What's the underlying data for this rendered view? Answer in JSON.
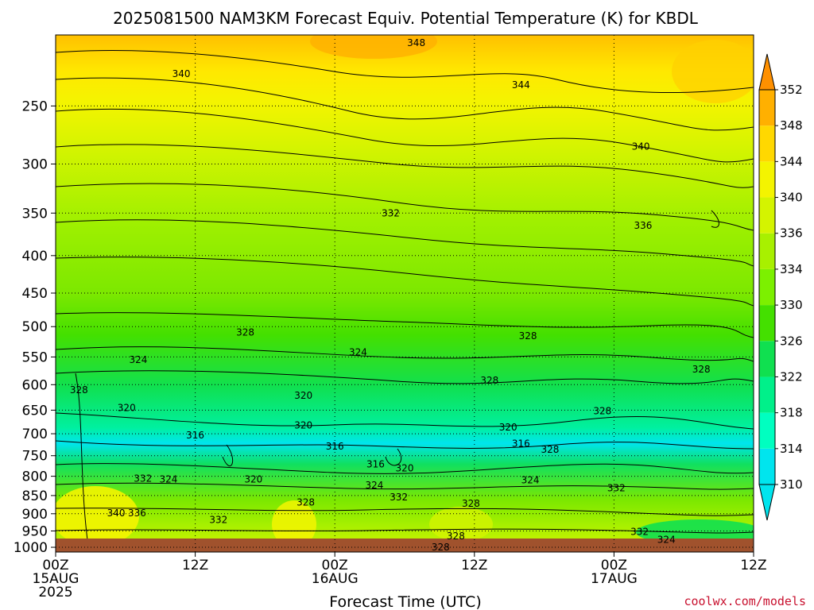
{
  "chart_data": {
    "type": "heatmap",
    "title": "2025081500 NAM3KM Forecast Equiv. Potential Temperature (K) for KBDL",
    "xlabel": "Forecast Time (UTC)",
    "ylabel": "",
    "credit": "coolwx.com/models",
    "x_ticks": [
      {
        "hour": 0,
        "lines": [
          "00Z",
          "15AUG",
          "2025"
        ]
      },
      {
        "hour": 12,
        "lines": [
          "12Z"
        ]
      },
      {
        "hour": 24,
        "lines": [
          "00Z",
          "16AUG"
        ]
      },
      {
        "hour": 36,
        "lines": [
          "12Z"
        ]
      },
      {
        "hour": 48,
        "lines": [
          "00Z",
          "17AUG"
        ]
      },
      {
        "hour": 60,
        "lines": [
          "12Z"
        ]
      }
    ],
    "xlim": [
      0,
      60
    ],
    "y_ticks": [
      250,
      300,
      350,
      400,
      450,
      500,
      550,
      600,
      650,
      700,
      750,
      800,
      850,
      900,
      950,
      1000
    ],
    "ylim": [
      1015,
      200
    ],
    "y_scale": "log-pressure",
    "colorbar": {
      "levels": [
        310,
        314,
        318,
        322,
        326,
        330,
        334,
        336,
        340,
        344,
        348,
        352
      ],
      "colors": [
        "#00e5ee",
        "#00ffc0",
        "#00f08a",
        "#10e050",
        "#44e000",
        "#7cf000",
        "#a8f000",
        "#d4f400",
        "#f4f400",
        "#ffd800",
        "#ffb000",
        "#ff9000"
      ],
      "extend": "both"
    },
    "contour_labels": [
      {
        "text": "348",
        "hour": 31.0,
        "p": 205
      },
      {
        "text": "340",
        "hour": 10.8,
        "p": 226
      },
      {
        "text": "344",
        "hour": 40.0,
        "p": 234
      },
      {
        "text": "340",
        "hour": 50.3,
        "p": 284
      },
      {
        "text": "332",
        "hour": 28.8,
        "p": 350
      },
      {
        "text": "336",
        "hour": 50.5,
        "p": 364
      },
      {
        "text": "328",
        "hour": 16.3,
        "p": 509
      },
      {
        "text": "328",
        "hour": 40.6,
        "p": 515
      },
      {
        "text": "324",
        "hour": 7.1,
        "p": 555
      },
      {
        "text": "324",
        "hour": 26.0,
        "p": 542
      },
      {
        "text": "328",
        "hour": 37.3,
        "p": 592
      },
      {
        "text": "328",
        "hour": 55.5,
        "p": 572
      },
      {
        "text": "328",
        "hour": 2.0,
        "p": 610
      },
      {
        "text": "320",
        "hour": 6.1,
        "p": 645
      },
      {
        "text": "320",
        "hour": 21.3,
        "p": 621
      },
      {
        "text": "320",
        "hour": 21.3,
        "p": 682
      },
      {
        "text": "328",
        "hour": 47.0,
        "p": 652
      },
      {
        "text": "320",
        "hour": 38.9,
        "p": 686
      },
      {
        "text": "316",
        "hour": 12.0,
        "p": 703
      },
      {
        "text": "316",
        "hour": 24.0,
        "p": 728
      },
      {
        "text": "316",
        "hour": 40.0,
        "p": 722
      },
      {
        "text": "328",
        "hour": 42.5,
        "p": 736
      },
      {
        "text": "316",
        "hour": 27.5,
        "p": 770
      },
      {
        "text": "320",
        "hour": 30.0,
        "p": 780
      },
      {
        "text": "332",
        "hour": 7.5,
        "p": 806
      },
      {
        "text": "324",
        "hour": 9.7,
        "p": 808
      },
      {
        "text": "320",
        "hour": 17.0,
        "p": 808
      },
      {
        "text": "324",
        "hour": 27.4,
        "p": 823
      },
      {
        "text": "324",
        "hour": 40.8,
        "p": 810
      },
      {
        "text": "332",
        "hour": 48.2,
        "p": 830
      },
      {
        "text": "332",
        "hour": 29.5,
        "p": 855
      },
      {
        "text": "328",
        "hour": 21.5,
        "p": 868
      },
      {
        "text": "328",
        "hour": 35.7,
        "p": 872
      },
      {
        "text": "340",
        "hour": 5.2,
        "p": 898
      },
      {
        "text": "336",
        "hour": 7.0,
        "p": 898
      },
      {
        "text": "332",
        "hour": 14.0,
        "p": 918
      },
      {
        "text": "328",
        "hour": 34.4,
        "p": 965
      },
      {
        "text": "332",
        "hour": 50.2,
        "p": 952
      },
      {
        "text": "324",
        "hour": 52.5,
        "p": 976
      },
      {
        "text": "328",
        "hour": 33.1,
        "p": 1000
      }
    ]
  }
}
